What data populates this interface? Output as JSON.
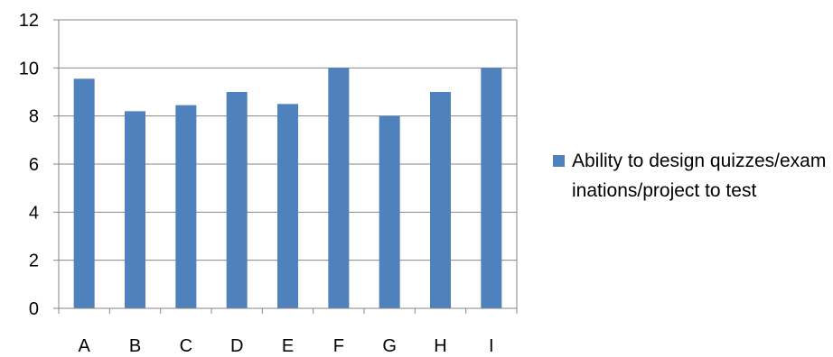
{
  "chart_data": {
    "type": "bar",
    "categories": [
      "A",
      "B",
      "C",
      "D",
      "E",
      "F",
      "G",
      "H",
      "I"
    ],
    "series": [
      {
        "name": "Ability to design quizzes/examinations/project to test",
        "values": [
          9.55,
          8.2,
          8.45,
          9.0,
          8.5,
          10.0,
          8.0,
          9.0,
          10.0
        ]
      }
    ],
    "yticks": [
      "0",
      "2",
      "4",
      "6",
      "8",
      "10",
      "12"
    ],
    "ylim": [
      0,
      12
    ],
    "grid": true,
    "legend_position": "right",
    "colors": {
      "bar": "#4f81bd",
      "grid": "#868686",
      "axis": "#868686"
    }
  }
}
